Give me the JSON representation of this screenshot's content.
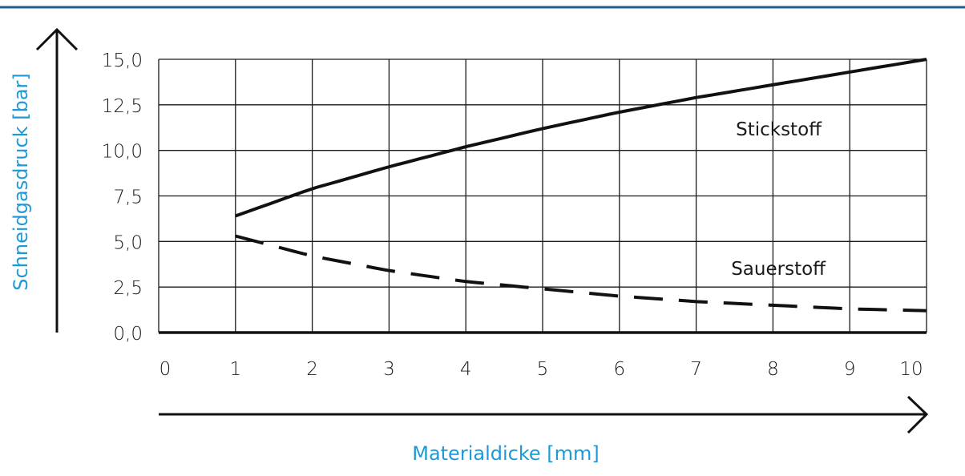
{
  "colors": {
    "accent": "#1d9ad6",
    "ink": "#111111",
    "grid": "#1a1a1a"
  },
  "chart_data": {
    "type": "line",
    "title": "",
    "xlabel": "Materialdicke [mm]",
    "ylabel": "Schneidgasdruck [bar]",
    "xlim": [
      0,
      10
    ],
    "ylim": [
      0,
      15
    ],
    "x_ticks": [
      "0",
      "1",
      "2",
      "3",
      "4",
      "5",
      "6",
      "7",
      "8",
      "9",
      "10"
    ],
    "y_ticks": [
      {
        "value": 0,
        "label": "0,0"
      },
      {
        "value": 2.5,
        "label": "2,5"
      },
      {
        "value": 5,
        "label": "5,0"
      },
      {
        "value": 7.5,
        "label": "7,5"
      },
      {
        "value": 10,
        "label": "10,0"
      },
      {
        "value": 12.5,
        "label": "12,5"
      },
      {
        "value": 15,
        "label": "15,0"
      }
    ],
    "grid": true,
    "series": [
      {
        "name": "Stickstoff",
        "style": "solid",
        "x": [
          1,
          2,
          3,
          4,
          5,
          6,
          7,
          8,
          9,
          10
        ],
        "y": [
          6.4,
          7.9,
          9.1,
          10.2,
          11.2,
          12.1,
          12.9,
          13.6,
          14.3,
          15.0
        ]
      },
      {
        "name": "Sauerstoff",
        "style": "dashed",
        "x": [
          1,
          2,
          3,
          4,
          5,
          6,
          7,
          8,
          9,
          10
        ],
        "y": [
          5.3,
          4.2,
          3.4,
          2.8,
          2.4,
          2.0,
          1.7,
          1.5,
          1.3,
          1.2
        ]
      }
    ]
  }
}
